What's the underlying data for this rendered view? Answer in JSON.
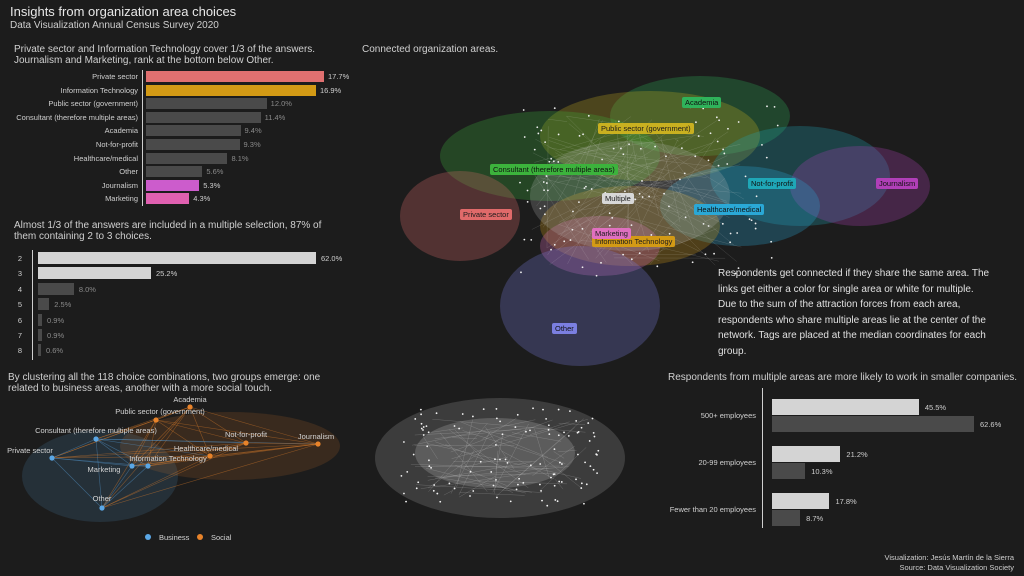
{
  "header": {
    "title": "Insights from organization area choices",
    "subtitle": "Data Visualization Annual Census Survey 2020"
  },
  "chart_data": [
    {
      "id": "areas",
      "type": "bar",
      "title": "Private sector and Information Technology cover 1/3 of the answers. Journalism and Marketing, rank at the bottom below Other.",
      "categories": [
        "Private sector",
        "Information Technology",
        "Public sector (government)",
        "Consultant (therefore multiple areas)",
        "Academia",
        "Not-for-profit",
        "Healthcare/medical",
        "Other",
        "Journalism",
        "Marketing"
      ],
      "values": [
        17.7,
        16.9,
        12.0,
        11.4,
        9.4,
        9.3,
        8.1,
        5.6,
        5.3,
        4.3
      ],
      "value_labels": [
        "17.7%",
        "16.9%",
        "12.0%",
        "11.4%",
        "9.4%",
        "9.3%",
        "8.1%",
        "5.6%",
        "5.3%",
        "4.3%"
      ],
      "colors": [
        "#e07070",
        "#d39a15",
        "#4a4a4a",
        "#4a4a4a",
        "#4a4a4a",
        "#4a4a4a",
        "#4a4a4a",
        "#4a4a4a",
        "#cc5ccc",
        "#e060b0"
      ],
      "unit": "%"
    },
    {
      "id": "multi",
      "type": "bar",
      "title": "Almost 1/3 of the answers are included in a multiple selection, 87% of them containing 2 to 3 choices.",
      "categories": [
        "2",
        "3",
        "4",
        "5",
        "6",
        "7",
        "8"
      ],
      "values": [
        62.0,
        25.2,
        8.0,
        2.5,
        0.9,
        0.9,
        0.6
      ],
      "value_labels": [
        "62.0%",
        "25.2%",
        "8.0%",
        "2.5%",
        "0.9%",
        "0.9%",
        "0.6%"
      ],
      "colors": [
        "#d4d4d4",
        "#d4d4d4",
        "#4a4a4a",
        "#4a4a4a",
        "#4a4a4a",
        "#4a4a4a",
        "#4a4a4a"
      ],
      "unit": "%"
    },
    {
      "id": "company",
      "type": "bar",
      "title": "Respondents from multiple areas are more likely to work in smaller companies.",
      "categories": [
        "500+ employees",
        "20-99 employees",
        "Fewer than 20 employees"
      ],
      "series": [
        {
          "values": [
            45.5,
            21.2,
            17.8
          ],
          "value_labels": [
            "45.5%",
            "21.2%",
            "17.8%"
          ],
          "color": "#d4d4d4"
        },
        {
          "values": [
            62.6,
            10.3,
            8.7
          ],
          "value_labels": [
            "62.6%",
            "10.3%",
            "8.7%"
          ],
          "color": "#4a4a4a"
        }
      ],
      "unit": "%"
    },
    {
      "id": "clusters",
      "type": "scatter",
      "title": "By clustering all the 118 choice combinations, two groups emerge: one related to business areas, another with a more social touch.",
      "legend": [
        {
          "name": "Business",
          "color": "#5aa7e6"
        },
        {
          "name": "Social",
          "color": "#e8832a"
        }
      ],
      "nodes": [
        {
          "label": "Academia",
          "group": "Social"
        },
        {
          "label": "Public sector (government)",
          "group": "Social"
        },
        {
          "label": "Consultant (therefore multiple areas)",
          "group": "Business"
        },
        {
          "label": "Not-for-profit",
          "group": "Social"
        },
        {
          "label": "Journalism",
          "group": "Social"
        },
        {
          "label": "Healthcare/medical",
          "group": "Social"
        },
        {
          "label": "Private sector",
          "group": "Business"
        },
        {
          "label": "Information Technology",
          "group": "Business"
        },
        {
          "label": "Marketing",
          "group": "Business"
        },
        {
          "label": "Other",
          "group": "Business"
        }
      ]
    }
  ],
  "network": {
    "title": "Connected organization areas.",
    "tags": [
      {
        "label": "Academia",
        "color": "#2fb25a"
      },
      {
        "label": "Public sector (government)",
        "color": "#c9b020"
      },
      {
        "label": "Consultant (therefore multiple areas)",
        "color": "#3cb33c"
      },
      {
        "label": "Not-for-profit",
        "color": "#1fa7b7"
      },
      {
        "label": "Journalism",
        "color": "#b03fb8"
      },
      {
        "label": "Multiple",
        "color": "#d8d8d8"
      },
      {
        "label": "Private sector",
        "color": "#e06a6a"
      },
      {
        "label": "Healthcare/medical",
        "color": "#2aa8d6"
      },
      {
        "label": "Information Technology",
        "color": "#d39a15"
      },
      {
        "label": "Marketing",
        "color": "#e070c0"
      },
      {
        "label": "Other",
        "color": "#7b7fe0"
      }
    ],
    "note": "Respondents get connected if they share the same area. The links get either a color for single area or white for multiple. Due to the sum of the attraction forces from each area, respondents who share multiple areas lie at the center of the network. Tags are placed at the median coordinates for each group."
  },
  "footer": {
    "credit": "Visualization: Jesús Martín de la Sierra",
    "source": "Source: Data Visualization Society"
  }
}
